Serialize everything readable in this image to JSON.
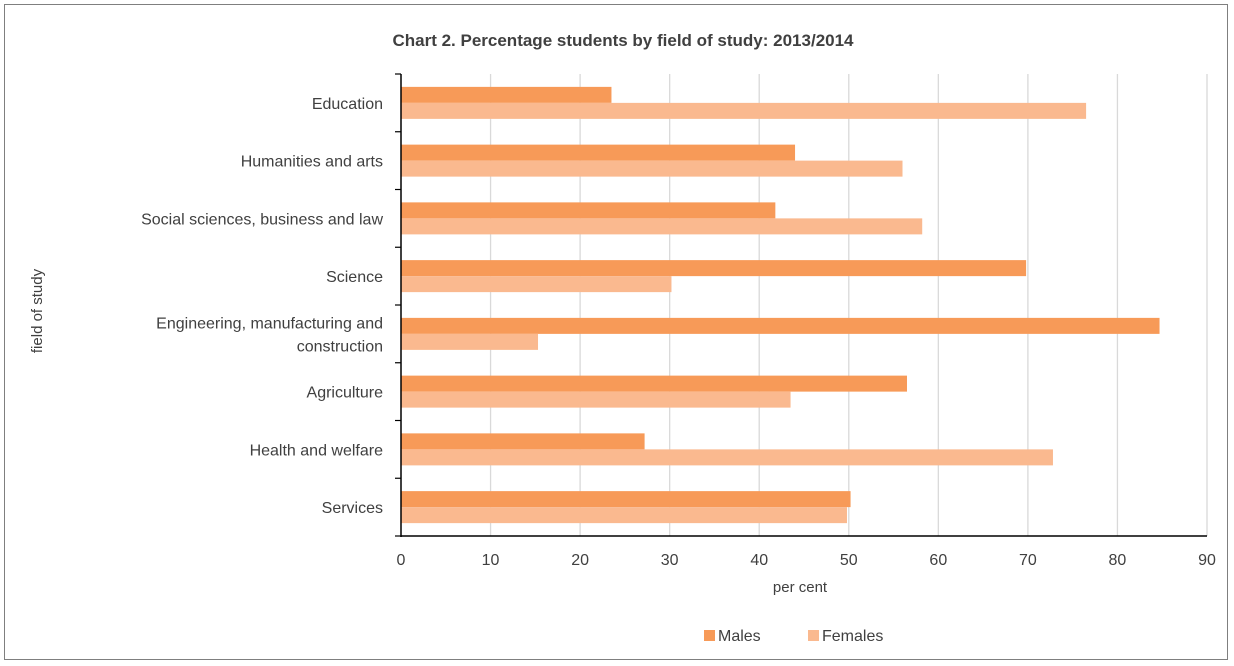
{
  "chart_data": {
    "type": "bar",
    "orientation": "horizontal",
    "title": "Chart 2. Percentage students by field of study: 2013/2014",
    "xlabel": "per cent",
    "ylabel": "field of study",
    "categories": [
      "Education",
      "Humanities and arts",
      "Social sciences, business and law",
      "Science",
      "Engineering, manufacturing and construction",
      "Agriculture",
      "Health and welfare",
      "Services"
    ],
    "category_lines": [
      [
        "Education"
      ],
      [
        "Humanities and arts"
      ],
      [
        "Social sciences, business and law"
      ],
      [
        "Science"
      ],
      [
        "Engineering, manufacturing and",
        "construction"
      ],
      [
        "Agriculture"
      ],
      [
        "Health and welfare"
      ],
      [
        "Services"
      ]
    ],
    "series": [
      {
        "name": "Males",
        "color": "#f79a58",
        "values": [
          23.5,
          44,
          41.8,
          69.8,
          84.7,
          56.5,
          27.2,
          50.2
        ]
      },
      {
        "name": "Females",
        "color": "#fab98f",
        "values": [
          76.5,
          56,
          58.2,
          30.2,
          15.3,
          43.5,
          72.8,
          49.8
        ]
      }
    ],
    "xlim": [
      0,
      90
    ],
    "xticks": [
      0,
      10,
      20,
      30,
      40,
      50,
      60,
      70,
      80,
      90
    ],
    "grid": true,
    "legend_position": "bottom"
  }
}
